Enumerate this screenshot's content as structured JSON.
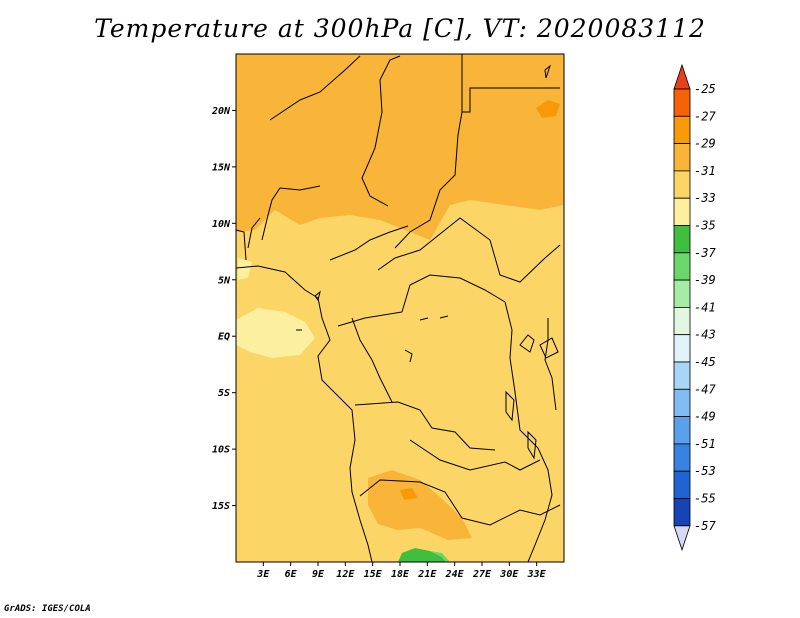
{
  "title": "Temperature at 300hPa [C], VT: 2020083112",
  "footer": "GrADS: IGES/COLA",
  "map": {
    "lon_range": [
      0,
      36
    ],
    "lat_range": [
      -20,
      25
    ],
    "lat_ticks": [
      {
        "value": 20,
        "label": "20N"
      },
      {
        "value": 15,
        "label": "15N"
      },
      {
        "value": 10,
        "label": "10N"
      },
      {
        "value": 5,
        "label": "5N"
      },
      {
        "value": 0,
        "label": "EQ"
      },
      {
        "value": -5,
        "label": "5S"
      },
      {
        "value": -10,
        "label": "10S"
      },
      {
        "value": -15,
        "label": "15S"
      }
    ],
    "lon_ticks": [
      {
        "value": 3,
        "label": "3E"
      },
      {
        "value": 6,
        "label": "6E"
      },
      {
        "value": 9,
        "label": "9E"
      },
      {
        "value": 12,
        "label": "12E"
      },
      {
        "value": 15,
        "label": "15E"
      },
      {
        "value": 18,
        "label": "18E"
      },
      {
        "value": 21,
        "label": "21E"
      },
      {
        "value": 24,
        "label": "24E"
      },
      {
        "value": 27,
        "label": "27E"
      },
      {
        "value": 30,
        "label": "30E"
      },
      {
        "value": 33,
        "label": "33E"
      }
    ]
  },
  "colorbar": {
    "labels": [
      "-25",
      "-27",
      "-29",
      "-31",
      "-33",
      "-35",
      "-37",
      "-39",
      "-41",
      "-43",
      "-45",
      "-47",
      "-49",
      "-51",
      "-53",
      "-55",
      "-57"
    ],
    "top_color": "#e8401c",
    "colors": [
      "#f56208",
      "#f89a08",
      "#f9b43a",
      "#fbd566",
      "#fcef9f",
      "#3fbf3f",
      "#6bd66b",
      "#a6eba6",
      "#e2f7e2",
      "#e2f4fb",
      "#a8d6f6",
      "#82bcf2",
      "#5aa1ec",
      "#3a82e2",
      "#2163d2",
      "#1644b4",
      "#0a1e78"
    ],
    "bottom_color": "#d8d8f4"
  }
}
